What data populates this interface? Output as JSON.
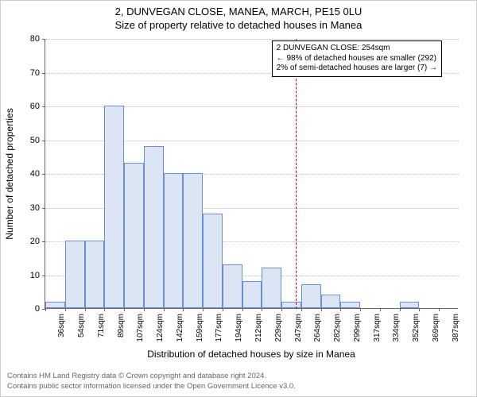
{
  "title": "2, DUNVEGAN CLOSE, MANEA, MARCH, PE15 0LU",
  "subtitle": "Size of property relative to detached houses in Manea",
  "ylabel": "Number of detached properties",
  "xlabel": "Distribution of detached houses by size in Manea",
  "chart": {
    "type": "histogram",
    "bar_fill": "#dbe5f4",
    "bar_stroke": "#6a8fd4",
    "grid_color": "#bfbfbf",
    "axis_color": "#666666",
    "refline_color": "#cc0000",
    "background_color": "#ffffff",
    "ylim": [
      0,
      80
    ],
    "ytick_step": 10,
    "xticks": [
      "36sqm",
      "54sqm",
      "71sqm",
      "89sqm",
      "107sqm",
      "124sqm",
      "142sqm",
      "159sqm",
      "177sqm",
      "194sqm",
      "212sqm",
      "229sqm",
      "247sqm",
      "264sqm",
      "282sqm",
      "299sqm",
      "317sqm",
      "334sqm",
      "352sqm",
      "369sqm",
      "387sqm"
    ],
    "values": [
      2,
      20,
      20,
      60,
      43,
      48,
      40,
      40,
      28,
      13,
      8,
      12,
      2,
      7,
      4,
      2,
      0,
      0,
      2,
      0,
      0
    ],
    "refline_x": 254,
    "x_min": 36,
    "x_max": 396,
    "bar_width_ratio": 1.0
  },
  "annotation": {
    "line1": "2 DUNVEGAN CLOSE: 254sqm",
    "line2": "← 98% of detached houses are smaller (292)",
    "line3": "2% of semi-detached houses are larger (7) →"
  },
  "footer": {
    "line1": "Contains HM Land Registry data © Crown copyright and database right 2024.",
    "line2": "Contains public sector information licensed under the Open Government Licence v3.0."
  },
  "fonts": {
    "title_fontsize": 13,
    "axis_label_fontsize": 12,
    "tick_fontsize": 11,
    "xtick_fontsize": 10,
    "annotation_fontsize": 10,
    "footer_fontsize": 9.5
  }
}
